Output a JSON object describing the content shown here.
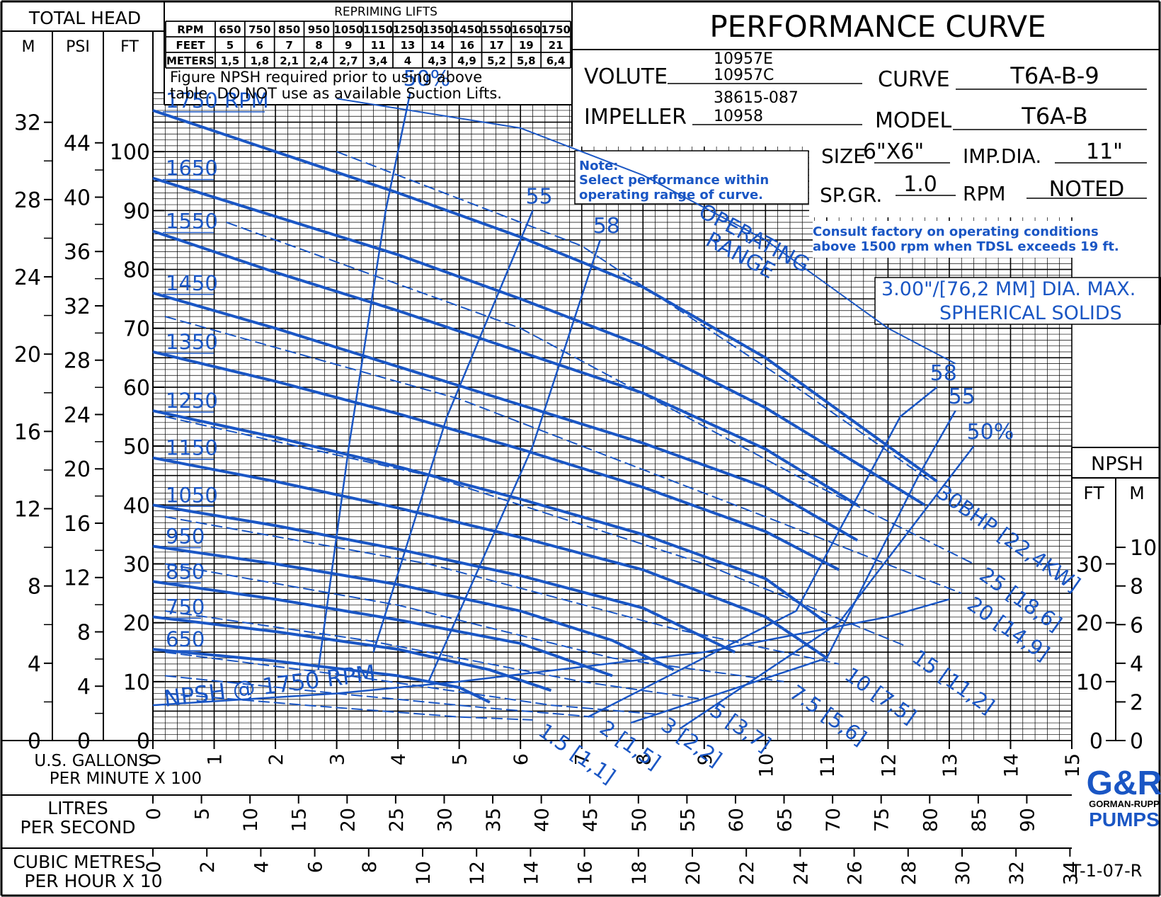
{
  "header": {
    "title": "PERFORMANCE CURVE",
    "total_head": "TOTAL HEAD",
    "unit_m": "M",
    "unit_psi": "PSI",
    "unit_ft": "FT",
    "volute_label": "VOLUTE",
    "volute_1": "10957E",
    "volute_2": "10957C",
    "impeller_label": "IMPELLER",
    "impeller_1": "38615-087",
    "impeller_2": "10958",
    "curve_label": "CURVE",
    "curve_value": "T6A-B-9",
    "model_label": "MODEL",
    "model_value": "T6A-B",
    "size_label": "SIZE",
    "size_value": "6\"X6\"",
    "impdia_label": "IMP.DIA.",
    "impdia_value": "11\"",
    "spgr_label": "SP.GR.",
    "spgr_value": "1.0",
    "rpm_label": "RPM",
    "rpm_value": "NOTED"
  },
  "repriming": {
    "title": "REPRIMING LIFTS",
    "rows": [
      [
        "RPM",
        "650",
        "750",
        "850",
        "950",
        "1050",
        "1150",
        "1250",
        "1350",
        "1450",
        "1550",
        "1650",
        "1750"
      ],
      [
        "FEET",
        "5",
        "6",
        "7",
        "8",
        "9",
        "11",
        "13",
        "14",
        "16",
        "17",
        "19",
        "21"
      ],
      [
        "METERS",
        "1,5",
        "1,8",
        "2,1",
        "2,4",
        "2,7",
        "3,4",
        "4",
        "4,3",
        "4,9",
        "5,2",
        "5,8",
        "6,4"
      ]
    ],
    "note_1": "Figure NPSH required prior to using above",
    "note_2": "table. DO NOT use as available Suction Lifts."
  },
  "notes": {
    "note_title": "Note:",
    "note_1": "Select performance within",
    "note_2": "operating range of curve.",
    "consult_1": "Consult factory on operating conditions",
    "consult_2": "above 1500 rpm when TDSL exceeds 19 ft.",
    "solids_1": "3.00\"/[76,2 MM] DIA. MAX.",
    "solids_2": "SPHERICAL SOLIDS",
    "operating": "OPERATING",
    "range": "RANGE",
    "npsh_curve_label": "NPSH @ 1750 RPM"
  },
  "axes": {
    "gpm_label_1": "U.S. GALLONS",
    "gpm_label_2": "PER MINUTE X 100",
    "lps_label_1": "LITRES",
    "lps_label_2": "PER SECOND",
    "cmh_label_1": "CUBIC METRES",
    "cmh_label_2": "PER HOUR X 10",
    "npsh_title": "NPSH",
    "npsh_ft": "FT",
    "npsh_m": "M",
    "drawing_no": "T-1-07-R",
    "logo_top": "G&R",
    "logo_mid": "GORMAN-RUPP",
    "logo_bot": "PUMPS",
    "ft_ticks": [
      "0",
      "10",
      "20",
      "30",
      "40",
      "50",
      "60",
      "70",
      "80",
      "90",
      "100"
    ],
    "m_ticks": [
      "0",
      "4",
      "8",
      "12",
      "16",
      "20",
      "24",
      "28",
      "32"
    ],
    "psi_ticks": [
      "0",
      "4",
      "8",
      "12",
      "16",
      "20",
      "24",
      "28",
      "32",
      "36",
      "40",
      "44"
    ],
    "gpm_ticks": [
      "0",
      "1",
      "2",
      "3",
      "4",
      "5",
      "6",
      "7",
      "8",
      "9",
      "10",
      "11",
      "12",
      "13",
      "14",
      "15"
    ],
    "lps_ticks": [
      "0",
      "5",
      "10",
      "15",
      "20",
      "25",
      "30",
      "35",
      "40",
      "45",
      "50",
      "55",
      "60",
      "65",
      "70",
      "75",
      "80",
      "85",
      "90"
    ],
    "cmh_ticks": [
      "0",
      "2",
      "4",
      "6",
      "8",
      "10",
      "12",
      "14",
      "16",
      "18",
      "20",
      "22",
      "24",
      "26",
      "28",
      "30",
      "32",
      "34"
    ],
    "npsh_ft_ticks": [
      "0",
      "10",
      "20",
      "30"
    ],
    "npsh_m_ticks": [
      "0",
      "2",
      "4",
      "6",
      "8",
      "10"
    ]
  },
  "chart_data": {
    "type": "line",
    "x_label": "U.S. GALLONS PER MINUTE X 100",
    "y_label": "TOTAL HEAD FT",
    "xlim": [
      0,
      15
    ],
    "ylim": [
      0,
      110
    ],
    "grid": true,
    "rpm_series": [
      {
        "name": "1750 RPM",
        "label": "1750 RPM",
        "points": [
          [
            0,
            107
          ],
          [
            2,
            100
          ],
          [
            4,
            93
          ],
          [
            6,
            85.5
          ],
          [
            8,
            77
          ],
          [
            10,
            65
          ],
          [
            12,
            50
          ],
          [
            12.8,
            44
          ]
        ]
      },
      {
        "name": "1650",
        "label": "1650",
        "points": [
          [
            0,
            95.5
          ],
          [
            2,
            89
          ],
          [
            4,
            82.5
          ],
          [
            6,
            75
          ],
          [
            8,
            67
          ],
          [
            10,
            56.5
          ],
          [
            11.5,
            47
          ],
          [
            12.6,
            40
          ]
        ]
      },
      {
        "name": "1550",
        "label": "1550",
        "points": [
          [
            0,
            86.5
          ],
          [
            2,
            79.5
          ],
          [
            4,
            73
          ],
          [
            6,
            66
          ],
          [
            8,
            59
          ],
          [
            10,
            49.5
          ],
          [
            11.5,
            40
          ]
        ]
      },
      {
        "name": "1450",
        "label": "1450",
        "points": [
          [
            0,
            76
          ],
          [
            2,
            70
          ],
          [
            4,
            63.5
          ],
          [
            6,
            57
          ],
          [
            8,
            50.5
          ],
          [
            10,
            43
          ],
          [
            11.5,
            34
          ]
        ]
      },
      {
        "name": "1350",
        "label": "1350",
        "points": [
          [
            0,
            66
          ],
          [
            2,
            61
          ],
          [
            4,
            55.5
          ],
          [
            6,
            49.5
          ],
          [
            8,
            43
          ],
          [
            10,
            35.5
          ],
          [
            11.2,
            29
          ]
        ]
      },
      {
        "name": "1250",
        "label": "1250",
        "points": [
          [
            0,
            56
          ],
          [
            2,
            51.5
          ],
          [
            4,
            46.5
          ],
          [
            6,
            41
          ],
          [
            8,
            35
          ],
          [
            10,
            27.5
          ],
          [
            11,
            20
          ]
        ]
      },
      {
        "name": "1150",
        "label": "1150",
        "points": [
          [
            0,
            48
          ],
          [
            2,
            44
          ],
          [
            4,
            39.5
          ],
          [
            6,
            34.5
          ],
          [
            8,
            29
          ],
          [
            10,
            21
          ],
          [
            11,
            14
          ]
        ]
      },
      {
        "name": "1050",
        "label": "1050",
        "points": [
          [
            0,
            40
          ],
          [
            2,
            36.5
          ],
          [
            4,
            32.5
          ],
          [
            6,
            28
          ],
          [
            8,
            22.5
          ],
          [
            9.5,
            15
          ]
        ]
      },
      {
        "name": "950",
        "label": "950",
        "points": [
          [
            0,
            33
          ],
          [
            2,
            30
          ],
          [
            4,
            26.5
          ],
          [
            6,
            22
          ],
          [
            7.5,
            17
          ],
          [
            8.5,
            12
          ]
        ]
      },
      {
        "name": "850",
        "label": "850",
        "points": [
          [
            0,
            27
          ],
          [
            2,
            24
          ],
          [
            4,
            20.5
          ],
          [
            6,
            16.5
          ],
          [
            7.5,
            11
          ]
        ]
      },
      {
        "name": "750",
        "label": "750",
        "points": [
          [
            0,
            21
          ],
          [
            2,
            18.5
          ],
          [
            4,
            15.5
          ],
          [
            5.5,
            12
          ],
          [
            6.5,
            8.5
          ]
        ]
      },
      {
        "name": "650",
        "label": "650",
        "points": [
          [
            0,
            15.5
          ],
          [
            2,
            13.5
          ],
          [
            4,
            11
          ],
          [
            5,
            9
          ],
          [
            5.5,
            6.5
          ]
        ]
      }
    ],
    "efficiency_series": [
      {
        "name": "50%",
        "points": [
          [
            2.7,
            12
          ],
          [
            3.2,
            50
          ],
          [
            3.8,
            90
          ],
          [
            4.2,
            110
          ]
        ]
      },
      {
        "name": "55",
        "points": [
          [
            3.6,
            15
          ],
          [
            4.8,
            55
          ],
          [
            6.2,
            90
          ]
        ]
      },
      {
        "name": "58",
        "points": [
          [
            4.5,
            10
          ],
          [
            6.2,
            50
          ],
          [
            7.3,
            85
          ]
        ]
      },
      {
        "name": "58",
        "points": [
          [
            7.1,
            4
          ],
          [
            10.5,
            22
          ],
          [
            12.2,
            55
          ],
          [
            12.8,
            60
          ]
        ]
      },
      {
        "name": "55",
        "points": [
          [
            7.8,
            3
          ],
          [
            11,
            14
          ],
          [
            12.5,
            45
          ],
          [
            13.1,
            56
          ]
        ]
      },
      {
        "name": "50%",
        "points": [
          [
            8.6,
            2
          ],
          [
            11.2,
            20
          ],
          [
            13.4,
            50
          ]
        ]
      }
    ],
    "bhp_series": [
      {
        "name": "30BHP [22,4KW]",
        "points": [
          [
            3,
            100
          ],
          [
            7,
            84
          ],
          [
            10.5,
            60
          ],
          [
            12.7,
            44
          ]
        ]
      },
      {
        "name": "25 [18,6]",
        "points": [
          [
            1.2,
            88
          ],
          [
            6,
            70
          ],
          [
            10.5,
            45
          ],
          [
            13.4,
            30
          ]
        ]
      },
      {
        "name": "20 [14,9]",
        "points": [
          [
            0.2,
            72
          ],
          [
            5,
            58
          ],
          [
            10,
            38
          ],
          [
            13.2,
            25
          ]
        ]
      },
      {
        "name": "15 [11,2]",
        "points": [
          [
            0.2,
            55
          ],
          [
            4.5,
            45
          ],
          [
            9,
            30
          ],
          [
            12.3,
            16
          ]
        ]
      },
      {
        "name": "10 [7,5]",
        "points": [
          [
            0.2,
            38
          ],
          [
            4.5,
            30
          ],
          [
            8.5,
            19
          ],
          [
            11.2,
            13
          ]
        ]
      },
      {
        "name": "7.5 [5,6]",
        "points": [
          [
            0.2,
            30
          ],
          [
            4,
            23
          ],
          [
            7.5,
            14
          ],
          [
            10.3,
            10
          ]
        ]
      },
      {
        "name": "5 [3,7]",
        "points": [
          [
            0.2,
            22
          ],
          [
            3.5,
            17
          ],
          [
            7,
            10
          ],
          [
            9,
            7
          ]
        ]
      },
      {
        "name": "3 [2,2]",
        "points": [
          [
            0.2,
            15
          ],
          [
            3.2,
            11
          ],
          [
            6.5,
            6
          ],
          [
            8.2,
            4.5
          ]
        ]
      },
      {
        "name": "2 [1,5]",
        "points": [
          [
            0.2,
            11
          ],
          [
            3,
            8
          ],
          [
            5.5,
            5.5
          ],
          [
            7.2,
            4
          ]
        ]
      },
      {
        "name": "1.5 [1,1]",
        "points": [
          [
            0.2,
            8
          ],
          [
            2.5,
            6
          ],
          [
            5,
            4
          ],
          [
            6.2,
            3.5
          ]
        ]
      }
    ],
    "npsh_series": {
      "name": "NPSH @ 1750 RPM",
      "points": [
        [
          0,
          6
        ],
        [
          3,
          8
        ],
        [
          5,
          10
        ],
        [
          7,
          12.5
        ],
        [
          9,
          15
        ],
        [
          11,
          19
        ],
        [
          12,
          21
        ],
        [
          13,
          24
        ]
      ]
    },
    "operating_range": {
      "name": "OPERATING RANGE",
      "points": [
        [
          3,
          109
        ],
        [
          6,
          104
        ],
        [
          8,
          96
        ],
        [
          10,
          85
        ],
        [
          12,
          70
        ],
        [
          13.1,
          64
        ]
      ]
    }
  }
}
